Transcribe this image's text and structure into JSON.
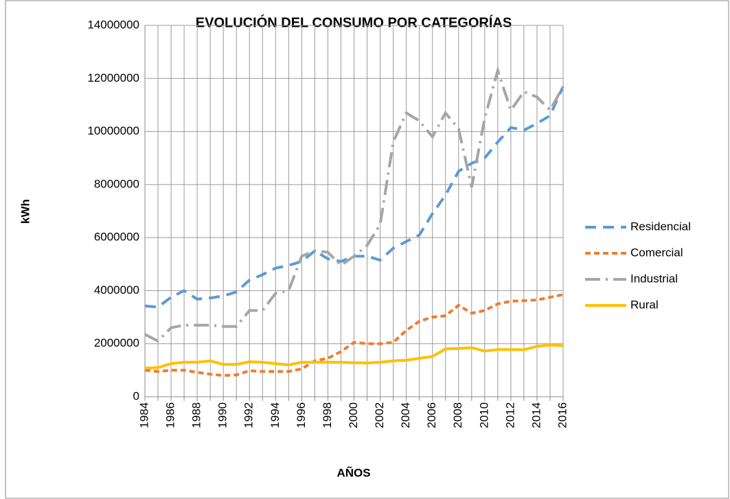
{
  "chart_data": {
    "type": "line",
    "title": "EVOLUCIÓN DEL CONSUMO POR CATEGORÍAS",
    "x_label": "AÑOS",
    "y_label": "kWh",
    "categories": [
      "1984",
      null,
      "1986",
      null,
      "1988",
      null,
      "1990",
      null,
      "1992",
      null,
      "1994",
      null,
      "1996",
      null,
      "1998",
      null,
      "2000",
      null,
      "2002",
      null,
      "2004",
      null,
      "2006",
      null,
      "2008",
      null,
      "2010",
      null,
      "2012",
      null,
      "2014",
      null,
      "2016"
    ],
    "ylim": [
      0,
      14000000
    ],
    "yticks": [
      0,
      2000000,
      4000000,
      6000000,
      8000000,
      10000000,
      12000000,
      14000000
    ],
    "grid": true,
    "legend": "right",
    "series": [
      {
        "name": "Residencial",
        "color": "#5b9bd5",
        "line_style": "dash",
        "values": [
          3420000,
          3380000,
          3750000,
          4000000,
          3680000,
          3720000,
          3800000,
          3950000,
          4400000,
          4600000,
          4850000,
          4950000,
          5100000,
          5500000,
          5200000,
          5100000,
          5300000,
          5300000,
          5150000,
          5600000,
          5850000,
          6100000,
          6900000,
          7600000,
          8500000,
          8800000,
          9000000,
          9600000,
          10150000,
          10050000,
          10300000,
          10600000,
          11700000
        ]
      },
      {
        "name": "Comercial",
        "color": "#ed7d31",
        "line_style": "short-dash",
        "values": [
          1000000,
          950000,
          1000000,
          1000000,
          920000,
          850000,
          800000,
          820000,
          980000,
          950000,
          950000,
          950000,
          1050000,
          1350000,
          1450000,
          1700000,
          2050000,
          2000000,
          2000000,
          2050000,
          2500000,
          2850000,
          3000000,
          3050000,
          3450000,
          3150000,
          3250000,
          3500000,
          3600000,
          3620000,
          3650000,
          3750000,
          3850000
        ]
      },
      {
        "name": "Industrial",
        "color": "#a5a5a5",
        "line_style": "long-dash-dot",
        "values": [
          2350000,
          2100000,
          2600000,
          2700000,
          2700000,
          2700000,
          2650000,
          2650000,
          3250000,
          3250000,
          3900000,
          4000000,
          5300000,
          5500000,
          5450000,
          4950000,
          5300000,
          5700000,
          6500000,
          9600000,
          10700000,
          10400000,
          9800000,
          10700000,
          10100000,
          7900000,
          10500000,
          12300000,
          10800000,
          11500000,
          11300000,
          10800000,
          11700000
        ]
      },
      {
        "name": "Rural",
        "color": "#ffc000",
        "line_style": "solid",
        "values": [
          1080000,
          1100000,
          1250000,
          1300000,
          1300000,
          1350000,
          1220000,
          1220000,
          1320000,
          1300000,
          1250000,
          1200000,
          1300000,
          1300000,
          1300000,
          1300000,
          1280000,
          1270000,
          1300000,
          1350000,
          1380000,
          1450000,
          1520000,
          1800000,
          1820000,
          1850000,
          1720000,
          1780000,
          1780000,
          1770000,
          1900000,
          1950000,
          1920000
        ]
      }
    ]
  }
}
